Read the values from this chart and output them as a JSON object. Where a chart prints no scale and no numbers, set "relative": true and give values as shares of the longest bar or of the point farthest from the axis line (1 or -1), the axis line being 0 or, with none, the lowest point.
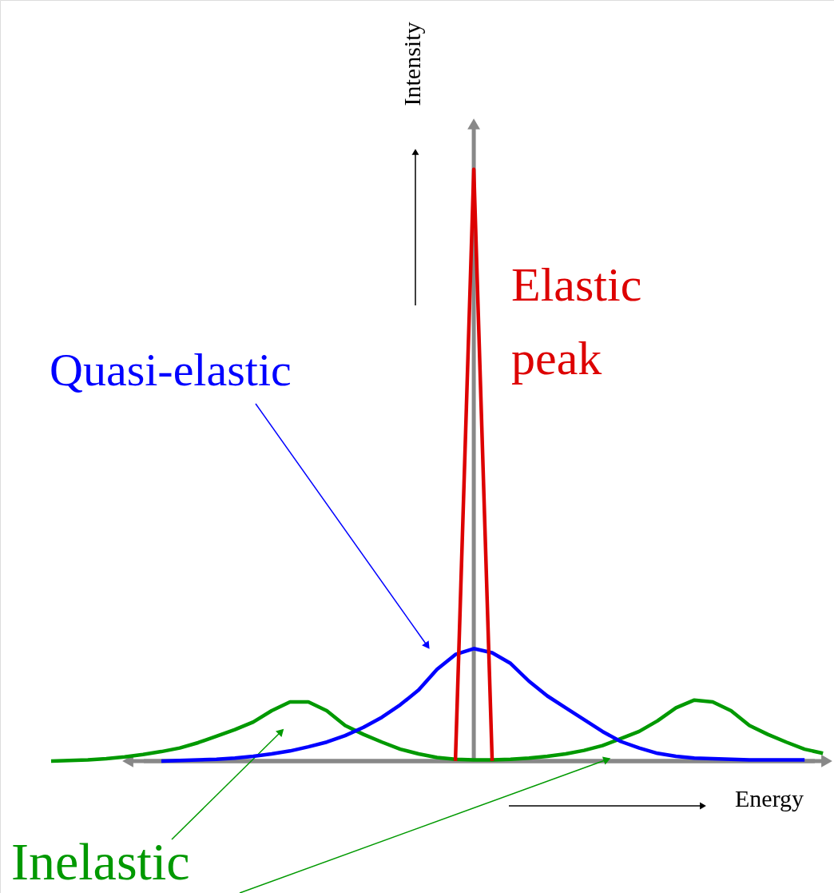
{
  "chart_data": {
    "type": "line",
    "relative": true,
    "xlabel": "Energy",
    "ylabel": "Intensity",
    "categories": [
      null,
      null,
      null,
      null,
      null,
      null,
      null,
      null,
      null,
      null,
      null,
      null,
      null,
      null,
      null,
      null,
      null,
      null,
      null,
      null,
      null,
      null,
      null,
      null,
      null,
      null,
      null,
      null,
      null,
      null,
      null,
      null,
      null,
      null,
      null,
      null,
      null,
      null,
      null,
      null,
      null,
      null,
      null
    ],
    "series": [
      {
        "name": "Inelastic",
        "color": "#009900",
        "values": [
          0,
          0.001,
          0.002,
          0.004,
          0.007,
          0.011,
          0.016,
          0.022,
          0.031,
          0.042,
          0.053,
          0.066,
          0.085,
          0.1,
          0.1,
          0.085,
          0.06,
          0.045,
          0.032,
          0.02,
          0.012,
          0.006,
          0.003,
          0.002,
          0.002,
          0.003,
          0.005,
          0.008,
          0.012,
          0.018,
          0.026,
          0.038,
          0.05,
          0.068,
          0.09,
          0.103,
          0.1,
          0.085,
          0.06,
          0.045,
          0.032,
          0.02,
          0.013
        ]
      },
      {
        "name": "Quasi-elastic",
        "color": "#0000ff",
        "values": [
          null,
          null,
          null,
          null,
          null,
          null,
          0,
          0.001,
          0.002,
          0.003,
          0.005,
          0.008,
          0.012,
          0.017,
          0.024,
          0.032,
          0.043,
          0.057,
          0.074,
          0.095,
          0.12,
          0.155,
          0.18,
          0.19,
          0.183,
          0.165,
          0.135,
          0.11,
          0.09,
          0.07,
          0.05,
          0.033,
          0.022,
          0.013,
          0.008,
          0.005,
          0.004,
          0.003,
          0.002,
          0.002,
          0.002,
          0.002,
          null
        ]
      },
      {
        "name": "Elastic peak",
        "color": "#dd0000",
        "values": [
          null,
          null,
          null,
          null,
          null,
          null,
          null,
          null,
          null,
          null,
          null,
          null,
          null,
          null,
          null,
          null,
          null,
          null,
          null,
          null,
          null,
          null,
          0,
          1,
          0,
          null,
          null,
          null,
          null,
          null,
          null,
          null,
          null,
          null,
          null,
          null,
          null,
          null,
          null,
          null,
          null,
          null,
          null
        ]
      }
    ]
  }
}
